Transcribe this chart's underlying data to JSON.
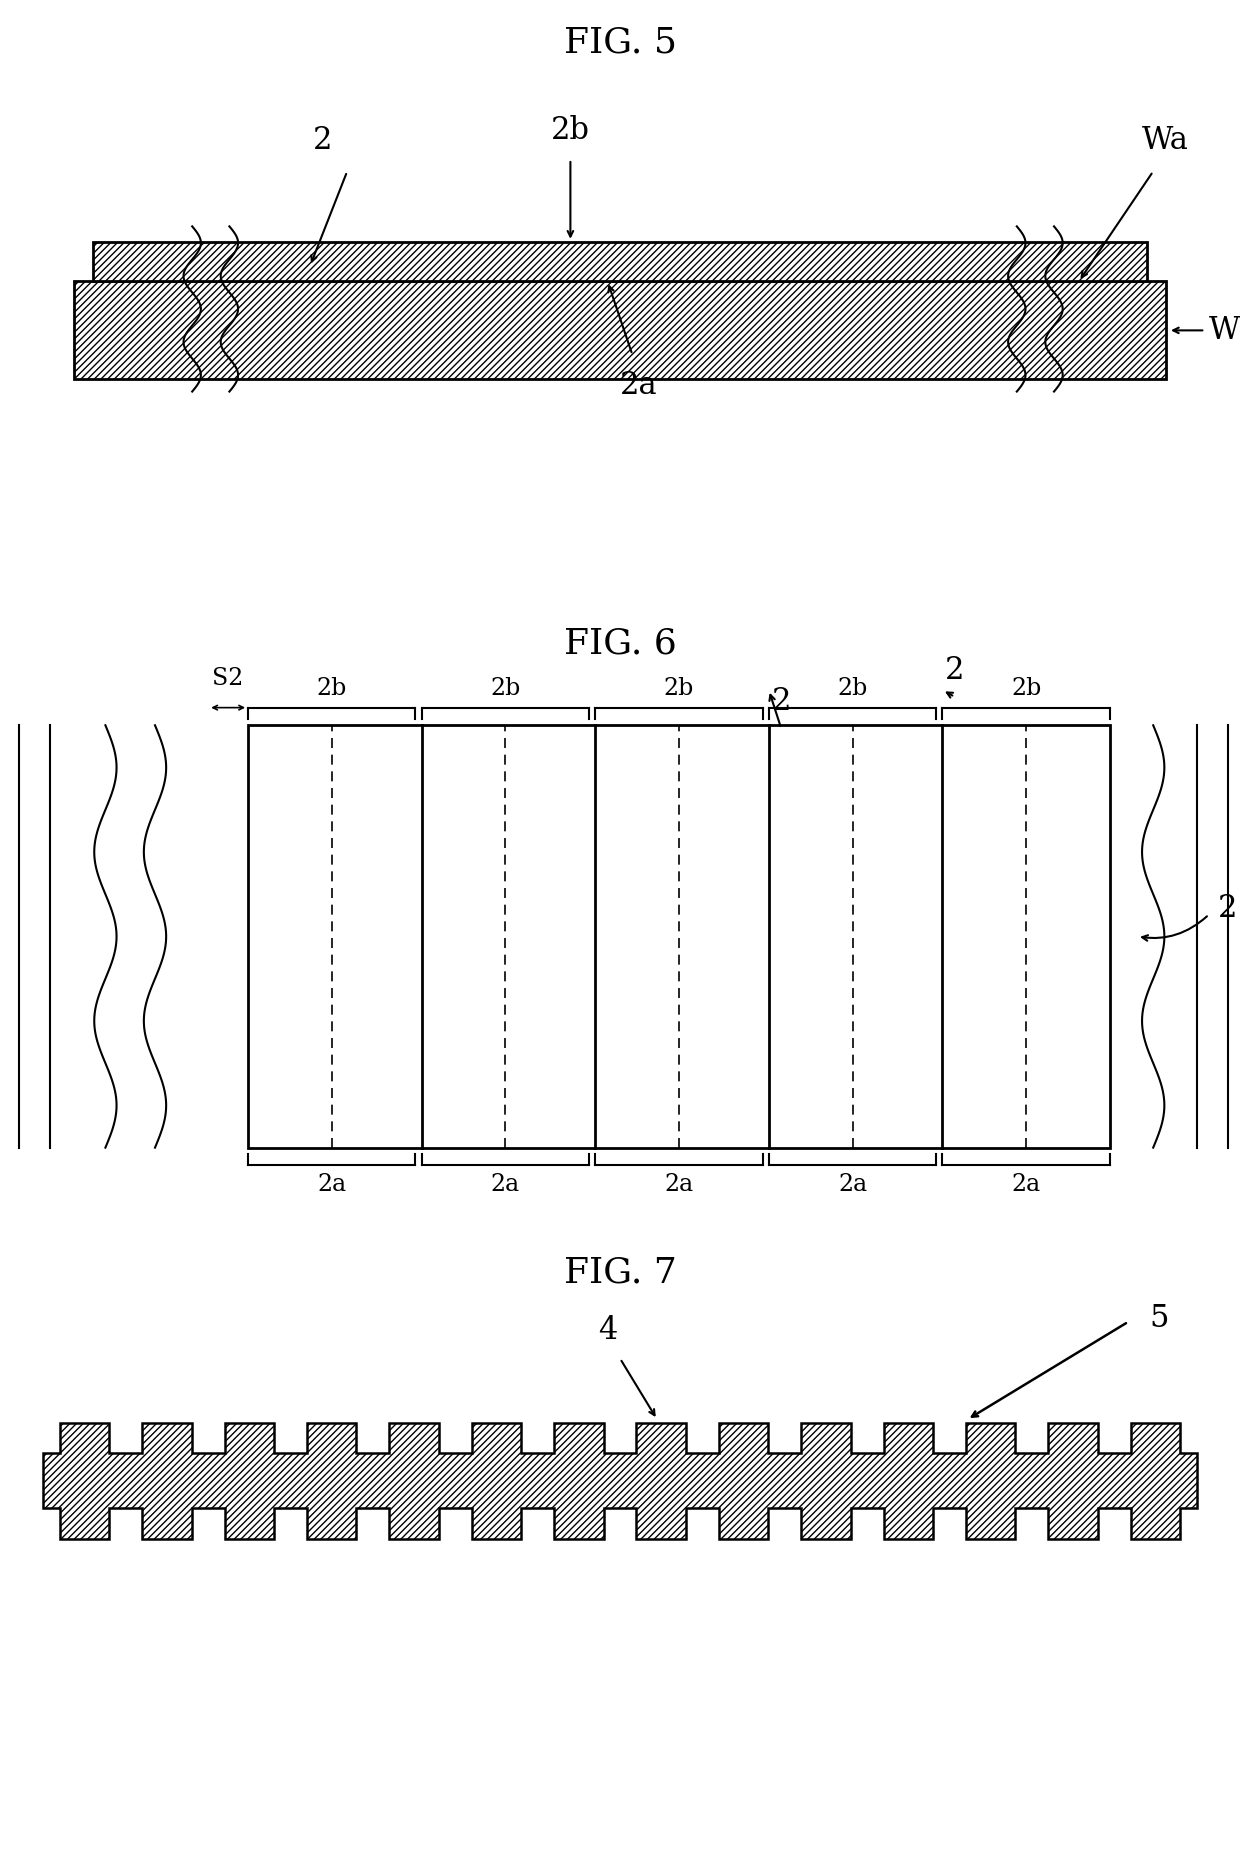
{
  "bg_color": "#ffffff",
  "fig5_title": "FIG. 5",
  "fig6_title": "FIG. 6",
  "fig7_title": "FIG. 7",
  "line_color": "#000000",
  "lw": 1.8,
  "hatch": "/////"
}
